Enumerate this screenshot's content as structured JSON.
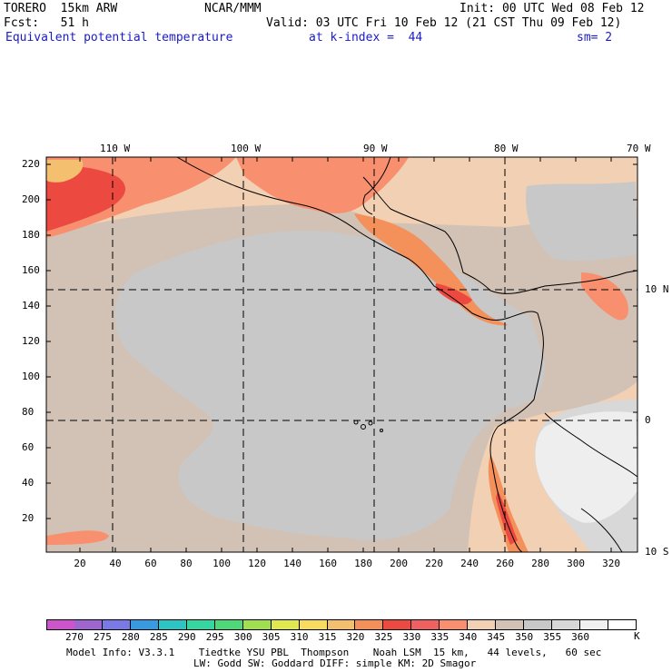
{
  "header": {
    "line1_left": "TORERO  15km ARW",
    "line1_mid": "NCAR/MMM",
    "line1_right": "Init: 00 UTC Wed 08 Feb 12",
    "line2_left": "Fcst:   51 h",
    "line2_right": "Valid: 03 UTC Fri 10 Feb 12 (21 CST Thu 09 Feb 12)",
    "line3_field": "Equivalent potential temperature",
    "line3_level": "at k-index =  44",
    "line3_sm": "sm= 2"
  },
  "map": {
    "top_lon_labels": [
      "110 W",
      "100 W",
      "90 W",
      "80 W",
      "70 W"
    ],
    "right_lat_labels": [
      "10 N",
      "0",
      "10 S"
    ],
    "left_y_ticks": [
      "220",
      "200",
      "180",
      "160",
      "140",
      "120",
      "100",
      "80",
      "60",
      "40",
      "20"
    ],
    "bottom_x_ticks": [
      "20",
      "40",
      "60",
      "80",
      "100",
      "120",
      "140",
      "160",
      "180",
      "200",
      "220",
      "240",
      "260",
      "280",
      "300",
      "320"
    ]
  },
  "colorbar": {
    "colors": [
      "#cc55cc",
      "#a066d0",
      "#7a7ae6",
      "#3a9ae0",
      "#2ec4c4",
      "#35d6a0",
      "#50d878",
      "#a0e050",
      "#e0ea50",
      "#f8dc60",
      "#f4c070",
      "#f4905a",
      "#ec4a40",
      "#f06060",
      "#f89070",
      "#f2d0b4",
      "#d2c2b6",
      "#c8c8c8",
      "#d8d8d8",
      "#f0f0f0",
      "#ffffff"
    ],
    "labels": [
      "270",
      "275",
      "280",
      "285",
      "290",
      "295",
      "300",
      "305",
      "310",
      "315",
      "320",
      "325",
      "330",
      "335",
      "340",
      "345",
      "350",
      "355",
      "360"
    ],
    "unit": "K"
  },
  "footer": {
    "line1": "Model Info: V3.3.1    Tiedtke YSU PBL  Thompson    Noah LSM  15 km,   44 levels,   60 sec",
    "line2": "LW: Godd SW: Goddard DIFF: simple KM: 2D Smagor"
  }
}
